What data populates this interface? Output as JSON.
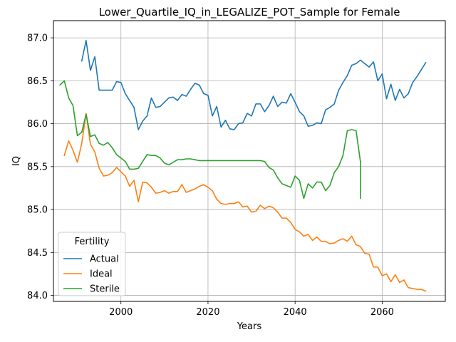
{
  "chart_data": {
    "type": "line",
    "title": "Lower_Quartile_IQ_in_LEGALIZE_POT_Sample for Female",
    "xlabel": "Years",
    "ylabel": "IQ",
    "xlim": [
      1984.5,
      2074.5
    ],
    "ylim": [
      83.93,
      87.2
    ],
    "xticks": [
      2000,
      2020,
      2040,
      2060
    ],
    "yticks": [
      84.0,
      84.5,
      85.0,
      85.5,
      86.0,
      86.5,
      87.0
    ],
    "ytick_labels": [
      "84.0",
      "84.5",
      "85.0",
      "85.5",
      "86.0",
      "86.5",
      "87.0"
    ],
    "grid": true,
    "legend": {
      "title": "Fertility",
      "placement": "lower-left"
    },
    "colors": {
      "Actual": "#1f77b4",
      "Ideal": "#ff7f0e",
      "Sterile": "#2ca02c"
    },
    "series": [
      {
        "name": "Actual",
        "x": [
          1991,
          1992,
          1993,
          1994,
          1995,
          1996,
          1997,
          1998,
          1999,
          2000,
          2001,
          2002,
          2003,
          2004,
          2005,
          2006,
          2007,
          2008,
          2009,
          2010,
          2011,
          2012,
          2013,
          2014,
          2015,
          2016,
          2017,
          2018,
          2019,
          2020,
          2021,
          2022,
          2023,
          2024,
          2025,
          2026,
          2027,
          2028,
          2029,
          2030,
          2031,
          2032,
          2033,
          2034,
          2035,
          2036,
          2037,
          2038,
          2039,
          2040,
          2041,
          2042,
          2043,
          2044,
          2045,
          2046,
          2047,
          2048,
          2049,
          2050,
          2051,
          2052,
          2053,
          2054,
          2055,
          2056,
          2057,
          2058,
          2059,
          2060,
          2061,
          2062,
          2063,
          2064,
          2065,
          2066,
          2067,
          2068,
          2069,
          2070
        ],
        "y": [
          86.73,
          86.97,
          86.62,
          86.78,
          86.39,
          86.39,
          86.39,
          86.39,
          86.49,
          86.48,
          86.35,
          86.27,
          86.19,
          85.93,
          86.03,
          86.09,
          86.3,
          86.19,
          86.2,
          86.25,
          86.3,
          86.31,
          86.27,
          86.34,
          86.32,
          86.4,
          86.47,
          86.45,
          86.35,
          86.33,
          86.09,
          86.2,
          85.96,
          86.04,
          85.94,
          85.93,
          86.0,
          86.01,
          86.12,
          86.09,
          86.23,
          86.23,
          86.14,
          86.21,
          86.32,
          86.2,
          86.25,
          86.24,
          86.35,
          86.25,
          86.14,
          86.09,
          85.97,
          85.98,
          86.01,
          86.0,
          86.16,
          86.19,
          86.23,
          86.39,
          86.48,
          86.56,
          86.68,
          86.7,
          86.74,
          86.7,
          86.66,
          86.72,
          86.5,
          86.58,
          86.29,
          86.46,
          86.27,
          86.4,
          86.3,
          86.35,
          86.48,
          86.55,
          86.63,
          86.71
        ]
      },
      {
        "name": "Ideal",
        "x": [
          1987,
          1988,
          1989,
          1990,
          1991,
          1992,
          1993,
          1994,
          1995,
          1996,
          1997,
          1998,
          1999,
          2000,
          2001,
          2002,
          2003,
          2004,
          2005,
          2006,
          2007,
          2008,
          2009,
          2010,
          2011,
          2012,
          2013,
          2014,
          2015,
          2016,
          2017,
          2018,
          2019,
          2020,
          2021,
          2022,
          2023,
          2024,
          2025,
          2026,
          2027,
          2028,
          2029,
          2030,
          2031,
          2032,
          2033,
          2034,
          2035,
          2036,
          2037,
          2038,
          2039,
          2040,
          2041,
          2042,
          2043,
          2044,
          2045,
          2046,
          2047,
          2048,
          2049,
          2050,
          2051,
          2052,
          2053,
          2054,
          2055,
          2056,
          2057,
          2058,
          2059,
          2060,
          2061,
          2062,
          2063,
          2064,
          2065,
          2066,
          2067,
          2068,
          2069,
          2070
        ],
        "y": [
          85.63,
          85.8,
          85.69,
          85.55,
          85.77,
          86.12,
          85.76,
          85.67,
          85.48,
          85.39,
          85.4,
          85.43,
          85.49,
          85.44,
          85.39,
          85.27,
          85.34,
          85.09,
          85.32,
          85.31,
          85.26,
          85.19,
          85.2,
          85.22,
          85.19,
          85.21,
          85.21,
          85.29,
          85.2,
          85.22,
          85.24,
          85.27,
          85.29,
          85.26,
          85.22,
          85.12,
          85.07,
          85.06,
          85.07,
          85.07,
          85.09,
          85.03,
          85.04,
          84.97,
          84.98,
          85.05,
          85.01,
          85.04,
          85.02,
          84.97,
          84.9,
          84.9,
          84.85,
          84.77,
          84.74,
          84.69,
          84.71,
          84.64,
          84.68,
          84.63,
          84.63,
          84.6,
          84.61,
          84.64,
          84.66,
          84.63,
          84.69,
          84.59,
          84.57,
          84.49,
          84.48,
          84.33,
          84.33,
          84.23,
          84.25,
          84.16,
          84.24,
          84.15,
          84.18,
          84.09,
          84.08,
          84.07,
          84.07,
          84.05
        ]
      },
      {
        "name": "Sterile",
        "x": [
          1986,
          1987,
          1988,
          1989,
          1990,
          1991,
          1992,
          1993,
          1994,
          1995,
          1996,
          1997,
          1998,
          1999,
          2000,
          2001,
          2002,
          2003,
          2004,
          2005,
          2006,
          2007,
          2008,
          2009,
          2010,
          2011,
          2012,
          2013,
          2014,
          2015,
          2016,
          2017,
          2018,
          2019,
          2020,
          2021,
          2022,
          2023,
          2024,
          2025,
          2026,
          2027,
          2028,
          2029,
          2030,
          2031,
          2032,
          2033,
          2034,
          2035,
          2036,
          2037,
          2038,
          2039,
          2040,
          2041,
          2042,
          2043,
          2044,
          2045,
          2046,
          2047,
          2048,
          2049,
          2050,
          2051,
          2052,
          2053,
          2054,
          2055
        ],
        "y": [
          86.45,
          86.5,
          86.3,
          86.21,
          85.86,
          85.9,
          86.11,
          85.85,
          85.87,
          85.77,
          85.75,
          85.78,
          85.72,
          85.64,
          85.6,
          85.56,
          85.47,
          85.47,
          85.48,
          85.56,
          85.64,
          85.63,
          85.63,
          85.6,
          85.54,
          85.52,
          85.55,
          85.58,
          85.58,
          85.59,
          85.59,
          85.58,
          85.57,
          85.57,
          85.57,
          85.57,
          85.57,
          85.57,
          85.57,
          85.57,
          85.57,
          85.57,
          85.57,
          85.57,
          85.57,
          85.57,
          85.57,
          85.56,
          85.49,
          85.46,
          85.37,
          85.3,
          85.28,
          85.26,
          85.39,
          85.34,
          85.13,
          85.3,
          85.25,
          85.32,
          85.32,
          85.22,
          85.28,
          85.43,
          85.5,
          85.63,
          85.92,
          85.93,
          85.92,
          85.56
        ]
      },
      {
        "name": "Sterile",
        "x": [
          2055
        ],
        "y": [
          85.13
        ],
        "continuation": true
      }
    ]
  }
}
